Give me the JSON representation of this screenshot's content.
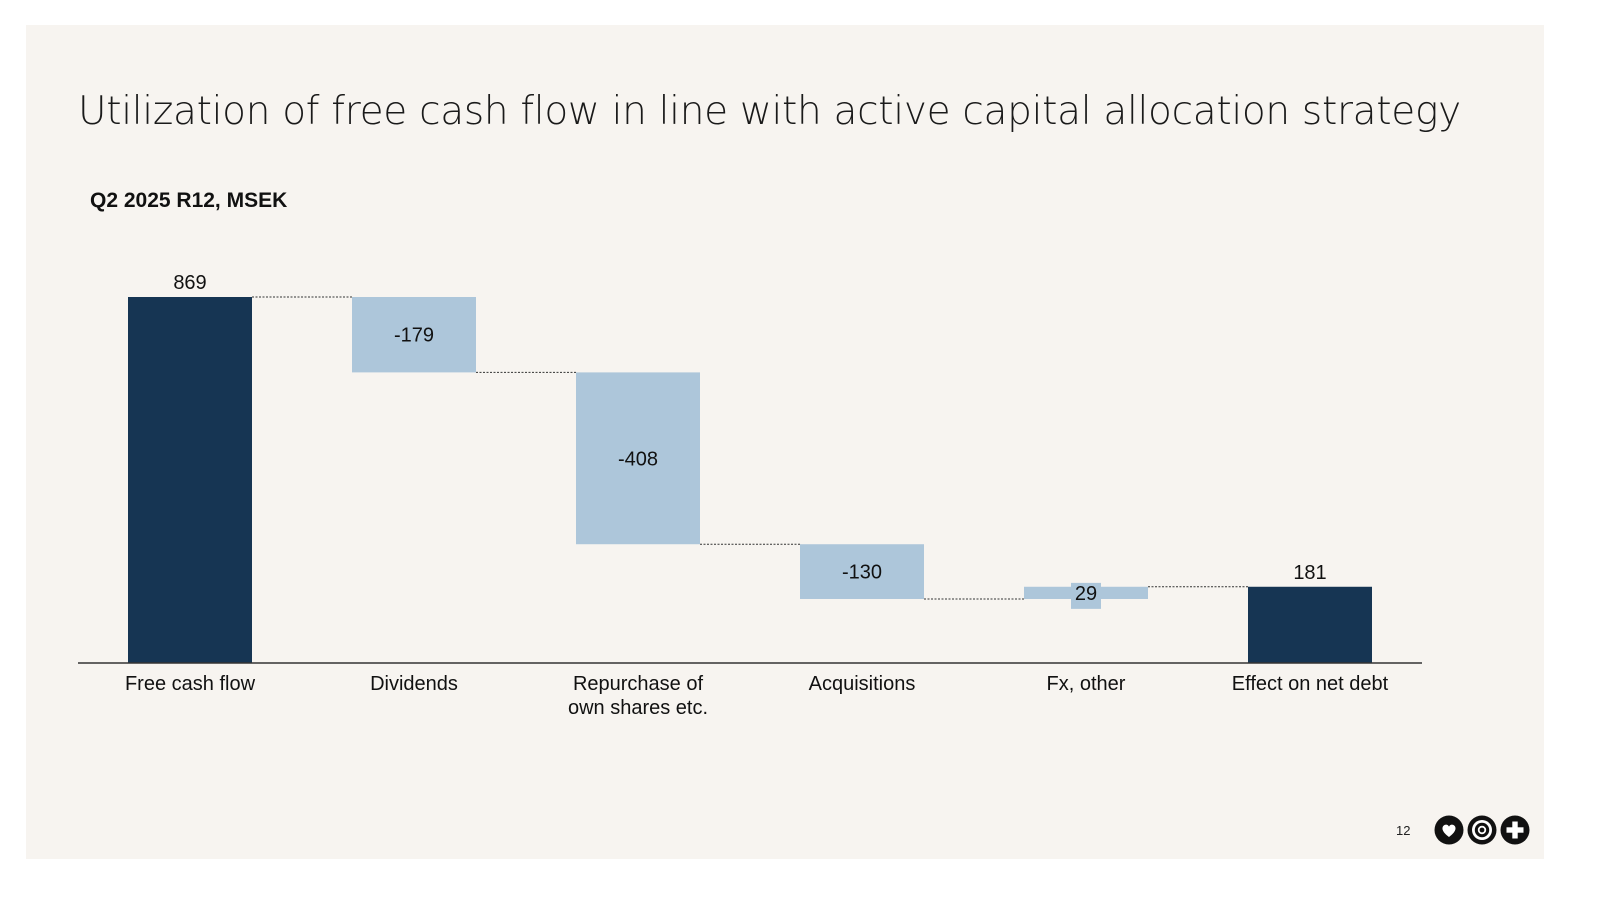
{
  "slide": {
    "title": "Utilization of free cash flow in line with active capital allocation strategy",
    "subtitle": "Q2 2025 R12, MSEK",
    "page_number": "12",
    "logo_icons": [
      "heart-icon",
      "target-icon",
      "plus-icon"
    ]
  },
  "colors": {
    "total_bar": "#163553",
    "change_bar": "#adc6da",
    "background": "#f7f4f0",
    "connector": "#333333"
  },
  "chart_data": {
    "type": "bar",
    "subtype": "waterfall",
    "categories": [
      "Free cash flow",
      "Dividends",
      "Repurchase of own shares etc.",
      "Acquisitions",
      "Fx, other",
      "Effect on net debt"
    ],
    "category_label_lines": [
      [
        "Free cash flow"
      ],
      [
        "Dividends"
      ],
      [
        "Repurchase of",
        "own shares etc."
      ],
      [
        "Acquisitions"
      ],
      [
        "Fx, other"
      ],
      [
        "Effect on net debt"
      ]
    ],
    "values": [
      869,
      -179,
      -408,
      -130,
      29,
      181
    ],
    "data_labels": [
      "869",
      "-179",
      "-408",
      "-130",
      "29",
      "181"
    ],
    "bar_kind": [
      "total",
      "change",
      "change",
      "change",
      "change",
      "total"
    ],
    "ylim": [
      0,
      900
    ],
    "grid": false,
    "legend": "none"
  }
}
